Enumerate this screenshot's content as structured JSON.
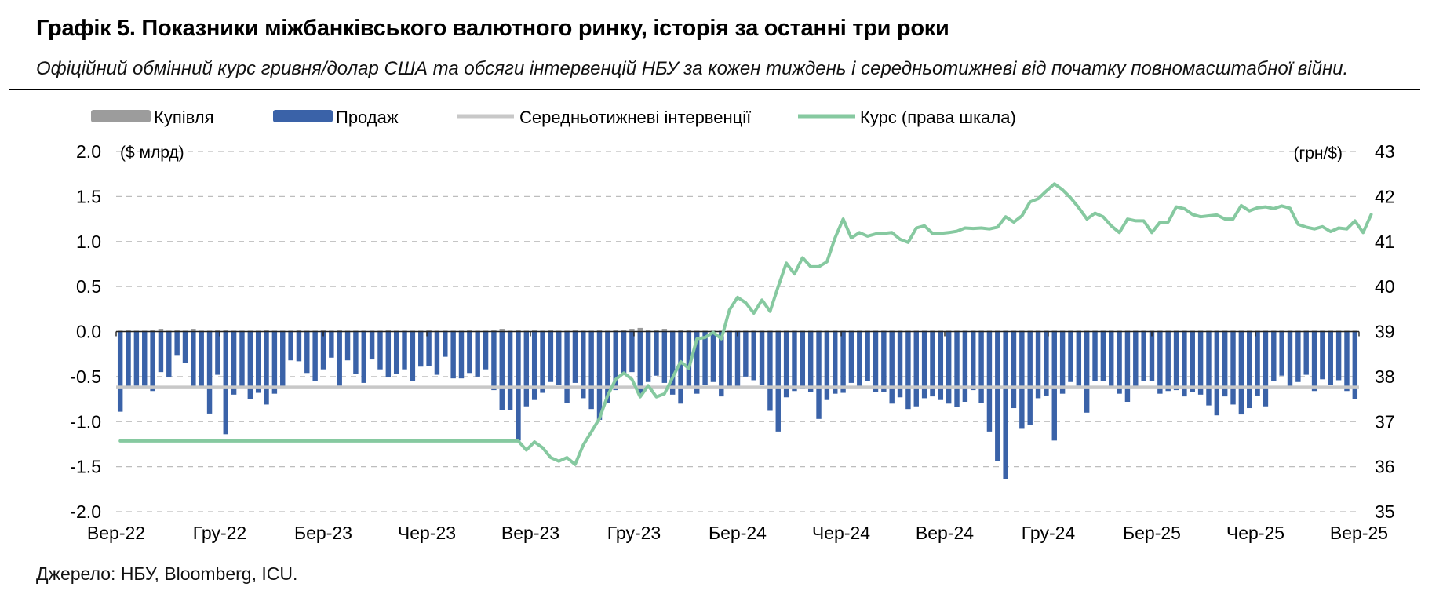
{
  "header": {
    "title": "Графік 5. Показники міжбанківського валютного ринку, історія за останні три роки",
    "subtitle": "Офіційний обмінний курс гривня/долар США та обсяги інтервенцій НБУ за кожен тиждень і середньотижневі від початку повномасштабної війни."
  },
  "footer": {
    "source": "Джерело: НБУ, Bloomberg, ICU."
  },
  "colors": {
    "buy": "#9c9c9c",
    "sell": "#3a62a8",
    "avg": "#c8c8c8",
    "rate": "#86c9a0"
  },
  "chart_data": {
    "type": "bar",
    "legend": [
      "Купівля",
      "Продаж",
      "Середньотижневі інтервенції",
      "Курс (права шкала)"
    ],
    "legend_position": "top",
    "grid": true,
    "ylabel_left": "($ млрд)",
    "ylabel_right": "(грн/$)",
    "ylim_left": [
      -2.0,
      2.0
    ],
    "ylim_right": [
      35,
      43
    ],
    "yticks_left": [
      "2.0",
      "1.5",
      "1.0",
      "0.5",
      "0.0",
      "-0.5",
      "-1.0",
      "-1.5",
      "-2.0"
    ],
    "yticks_right": [
      "43",
      "42",
      "41",
      "40",
      "39",
      "38",
      "37",
      "36",
      "35"
    ],
    "xticks": [
      "Вер-22",
      "Гру-22",
      "Бер-23",
      "Чер-23",
      "Вер-23",
      "Гру-23",
      "Бер-24",
      "Чер-24",
      "Вер-24",
      "Гру-24",
      "Бер-25",
      "Чер-25",
      "Вер-25"
    ],
    "series": [
      {
        "name": "Продаж",
        "values": [
          -0.89,
          -0.63,
          -0.6,
          -0.6,
          -0.66,
          -0.45,
          -0.51,
          -0.26,
          -0.35,
          -0.62,
          -0.63,
          -0.91,
          -0.48,
          -1.14,
          -0.7,
          -0.63,
          -0.75,
          -0.68,
          -0.81,
          -0.69,
          -0.63,
          -0.32,
          -0.33,
          -0.46,
          -0.55,
          -0.42,
          -0.29,
          -0.6,
          -0.32,
          -0.47,
          -0.57,
          -0.31,
          -0.42,
          -0.51,
          -0.47,
          -0.42,
          -0.55,
          -0.39,
          -0.38,
          -0.48,
          -0.28,
          -0.52,
          -0.52,
          -0.46,
          -0.5,
          -0.42,
          -0.65,
          -0.87,
          -0.87,
          -1.21,
          -0.83,
          -0.76,
          -0.68,
          -0.56,
          -0.59,
          -0.79,
          -0.57,
          -0.74,
          -0.86,
          -0.98,
          -0.79,
          -0.65,
          -0.48,
          -0.45,
          -0.69,
          -0.56,
          -0.49,
          -0.57,
          -0.7,
          -0.8,
          -0.62,
          -0.69,
          -0.59,
          -0.56,
          -0.72,
          -0.62,
          -0.63,
          -0.5,
          -0.54,
          -0.59,
          -0.88,
          -1.11,
          -0.73,
          -0.66,
          -0.64,
          -0.67,
          -0.97,
          -0.76,
          -0.69,
          -0.68,
          -0.57,
          -0.62,
          -0.55,
          -0.67,
          -0.67,
          -0.8,
          -0.73,
          -0.86,
          -0.83,
          -0.74,
          -0.72,
          -0.76,
          -0.8,
          -0.84,
          -0.78,
          -0.65,
          -0.79,
          -1.11,
          -1.44,
          -1.64,
          -0.85,
          -1.08,
          -1.04,
          -0.74,
          -0.71,
          -1.21,
          -0.69,
          -0.56,
          -0.6,
          -0.9,
          -0.55,
          -0.55,
          -0.62,
          -0.69,
          -0.78,
          -0.62,
          -0.55,
          -0.55,
          -0.69,
          -0.66,
          -0.65,
          -0.72,
          -0.67,
          -0.7,
          -0.82,
          -0.93,
          -0.72,
          -0.81,
          -0.92,
          -0.85,
          -0.71,
          -0.83,
          -0.55,
          -0.49,
          -0.62,
          -0.56,
          -0.48,
          -0.66,
          -0.53,
          -0.59,
          -0.54,
          -0.66,
          -0.75
        ]
      },
      {
        "name": "Купівля",
        "values": [
          0.01,
          0.02,
          0.01,
          0.01,
          0.02,
          0.03,
          0.01,
          0.02,
          0.01,
          0.03,
          0.01,
          0.01,
          0.02,
          0.02,
          0.01,
          0.01,
          0.01,
          0.01,
          0.02,
          0.01,
          0.01,
          0.01,
          0.02,
          0.01,
          0.01,
          0.02,
          0.01,
          0.02,
          0.01,
          0.01,
          0.01,
          0.01,
          0.01,
          0.02,
          0.01,
          0.01,
          0.01,
          0.01,
          0.02,
          0.01,
          0.01,
          0.01,
          0.01,
          0.02,
          0.01,
          0.01,
          0.02,
          0.03,
          0.01,
          0.02,
          0.01,
          0.02,
          0.01,
          0.02,
          0.01,
          0.01,
          0.02,
          0.01,
          0.01,
          0.02,
          0.01,
          0.02,
          0.02,
          0.03,
          0.04,
          0.02,
          0.02,
          0.03,
          0.01,
          0.02,
          0.02,
          0.01,
          0.01,
          0.01,
          0.01,
          0.01,
          0.01,
          0.01,
          0.01,
          0.01,
          0.01,
          0.01,
          0.01,
          0.01,
          0.01,
          0.01,
          0.01,
          0.01,
          0.01,
          0.01,
          0.01,
          0.01,
          0.01,
          0.01,
          0.01,
          0.01,
          0.01,
          0.01,
          0.01,
          0.01,
          0.01,
          0.01,
          0.01,
          0.01,
          0.01,
          0.01,
          0.01,
          0.01,
          0.01,
          0.01,
          0.01,
          0.01,
          0.01,
          0.01,
          0.01,
          0.01,
          0.01,
          0.01,
          0.01,
          0.01,
          0.01,
          0.01,
          0.01,
          0.01,
          0.01,
          0.01,
          0.01,
          0.01,
          0.01,
          0.01,
          0.01,
          0.01,
          0.01,
          0.01,
          0.01,
          0.01,
          0.01,
          0.01,
          0.01,
          0.01,
          0.01,
          0.01,
          0.01,
          0.01,
          0.01,
          0.01,
          0.01,
          0.01,
          0.01,
          0.01,
          0.01,
          0.01,
          0.01
        ]
      },
      {
        "name": "Середньотижневі інтервенції",
        "value": -0.62
      },
      {
        "name": "Курс (права шкала)",
        "values": [
          36.57,
          36.57,
          36.57,
          36.57,
          36.57,
          36.57,
          36.57,
          36.57,
          36.57,
          36.57,
          36.57,
          36.57,
          36.57,
          36.57,
          36.57,
          36.57,
          36.57,
          36.57,
          36.57,
          36.57,
          36.57,
          36.57,
          36.57,
          36.57,
          36.57,
          36.57,
          36.57,
          36.57,
          36.57,
          36.57,
          36.57,
          36.57,
          36.57,
          36.57,
          36.57,
          36.57,
          36.57,
          36.57,
          36.57,
          36.57,
          36.57,
          36.57,
          36.57,
          36.57,
          36.57,
          36.57,
          36.57,
          36.57,
          36.57,
          36.57,
          36.37,
          36.55,
          36.42,
          36.2,
          36.12,
          36.2,
          36.05,
          36.48,
          36.77,
          37.07,
          37.58,
          37.94,
          38.08,
          37.94,
          37.55,
          37.8,
          37.55,
          37.62,
          37.98,
          38.33,
          38.18,
          38.84,
          38.87,
          38.98,
          38.84,
          39.48,
          39.76,
          39.64,
          39.41,
          39.7,
          39.45,
          40.0,
          40.52,
          40.28,
          40.64,
          40.44,
          40.44,
          40.55,
          41.08,
          41.5,
          41.08,
          41.2,
          41.12,
          41.17,
          41.18,
          41.2,
          41.05,
          40.98,
          41.3,
          41.35,
          41.18,
          41.18,
          41.2,
          41.23,
          41.3,
          41.29,
          41.3,
          41.28,
          41.32,
          41.55,
          41.43,
          41.57,
          41.88,
          41.95,
          42.12,
          42.28,
          42.15,
          41.97,
          41.75,
          41.5,
          41.63,
          41.55,
          41.35,
          41.2,
          41.5,
          41.46,
          41.46,
          41.2,
          41.43,
          41.43,
          41.77,
          41.73,
          41.6,
          41.55,
          41.57,
          41.59,
          41.5,
          41.5,
          41.8,
          41.68,
          41.75,
          41.77,
          41.73,
          41.79,
          41.74,
          41.38,
          41.32,
          41.28,
          41.33,
          41.22,
          41.3,
          41.28,
          41.46,
          41.2,
          41.6
        ]
      }
    ]
  }
}
